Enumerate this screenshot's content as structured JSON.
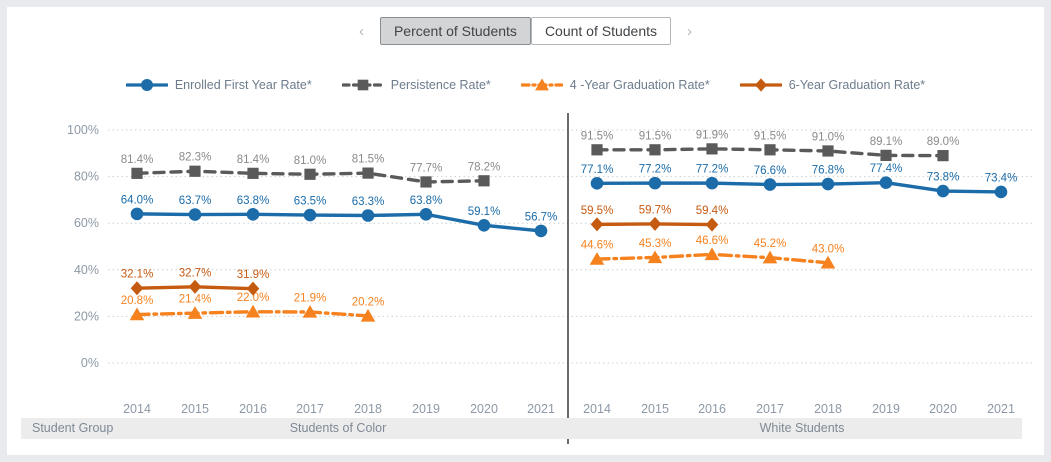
{
  "header": {
    "prev_label": "‹",
    "next_label": "›",
    "tabs": [
      {
        "label": "Percent of Students",
        "selected": true
      },
      {
        "label": "Count of Students",
        "selected": false
      }
    ]
  },
  "legend": [
    {
      "name": "Enrolled First Year Rate*",
      "color": "#1b6ca8",
      "label_color": "#1b6ca8",
      "marker": "circle",
      "dash": "solid"
    },
    {
      "name": "Persistence Rate*",
      "color": "#5a5a5a",
      "label_color": "#8a8a8a",
      "marker": "square",
      "dash": "dashed"
    },
    {
      "name": "4 -Year Graduation Rate*",
      "color": "#f5821f",
      "label_color": "#f5821f",
      "marker": "triangle",
      "dash": "dashdot"
    },
    {
      "name": "6-Year Graduation Rate*",
      "color": "#c55a11",
      "label_color": "#c55a11",
      "marker": "diamond",
      "dash": "solid"
    }
  ],
  "footer": {
    "row_header": "Student Group",
    "groups": [
      "Students of Color",
      "White Students"
    ]
  },
  "colors": {
    "background": "#e8eaed",
    "card": "#ffffff",
    "gridline": "#cbcfd2",
    "separator": "#1a1a1a",
    "axis_text": "#8d99a6",
    "footer_bar": "#ececec"
  },
  "chart_data": {
    "type": "line",
    "title": "",
    "ylim": [
      0,
      100
    ],
    "yticks": [
      0,
      20,
      40,
      60,
      80,
      100
    ],
    "ytick_suffix": "%",
    "grid": true,
    "legend_position": "top",
    "x": [
      "2014",
      "2015",
      "2016",
      "2017",
      "2018",
      "2019",
      "2020",
      "2021"
    ],
    "panels": [
      {
        "label": "Students of Color",
        "series": [
          {
            "name": "Enrolled First Year Rate*",
            "values": [
              64.0,
              63.7,
              63.8,
              63.5,
              63.3,
              63.8,
              59.1,
              56.7
            ]
          },
          {
            "name": "Persistence Rate*",
            "values": [
              81.4,
              82.3,
              81.4,
              81.0,
              81.5,
              77.7,
              78.2,
              null
            ]
          },
          {
            "name": "4 -Year Graduation Rate*",
            "values": [
              20.8,
              21.4,
              22.0,
              21.9,
              20.2,
              null,
              null,
              null
            ]
          },
          {
            "name": "6-Year Graduation Rate*",
            "values": [
              32.1,
              32.7,
              31.9,
              null,
              null,
              null,
              null,
              null
            ]
          }
        ]
      },
      {
        "label": "White Students",
        "series": [
          {
            "name": "Enrolled First Year Rate*",
            "values": [
              77.1,
              77.2,
              77.2,
              76.6,
              76.8,
              77.4,
              73.8,
              73.4
            ]
          },
          {
            "name": "Persistence Rate*",
            "values": [
              91.5,
              91.5,
              91.9,
              91.5,
              91.0,
              89.1,
              89.0,
              null
            ]
          },
          {
            "name": "4 -Year Graduation Rate*",
            "values": [
              44.6,
              45.3,
              46.6,
              45.2,
              43.0,
              null,
              null,
              null
            ]
          },
          {
            "name": "6-Year Graduation Rate*",
            "values": [
              59.5,
              59.7,
              59.4,
              null,
              null,
              null,
              null,
              null
            ]
          }
        ]
      }
    ]
  }
}
